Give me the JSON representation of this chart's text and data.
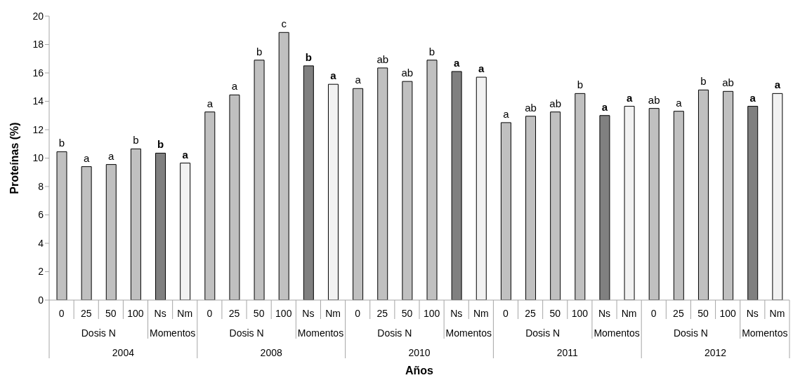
{
  "chart_data": {
    "type": "bar",
    "xlabel": "Años",
    "ylabel": "Proteínas (%)",
    "categories": [
      "0",
      "25",
      "50",
      "100",
      "Ns",
      "Nm",
      "0",
      "25",
      "50",
      "100",
      "Ns",
      "Nm",
      "0",
      "25",
      "50",
      "100",
      "Ns",
      "Nm",
      "0",
      "25",
      "50",
      "100",
      "Ns",
      "Nm",
      "0",
      "25",
      "50",
      "100",
      "Ns",
      "Nm"
    ],
    "values": [
      10.45,
      9.4,
      9.55,
      10.65,
      10.35,
      9.65,
      13.25,
      14.45,
      16.9,
      18.85,
      16.5,
      15.2,
      14.9,
      16.35,
      15.4,
      16.9,
      16.1,
      15.7,
      12.5,
      12.95,
      13.25,
      14.55,
      13.0,
      13.65,
      13.5,
      13.3,
      14.8,
      14.7,
      13.65,
      14.55
    ],
    "colors": [
      "#c0c0c0",
      "#c0c0c0",
      "#c0c0c0",
      "#c0c0c0",
      "#808080",
      "#f2f2f2",
      "#c0c0c0",
      "#c0c0c0",
      "#c0c0c0",
      "#c0c0c0",
      "#808080",
      "#f2f2f2",
      "#c0c0c0",
      "#c0c0c0",
      "#c0c0c0",
      "#c0c0c0",
      "#808080",
      "#f2f2f2",
      "#c0c0c0",
      "#c0c0c0",
      "#c0c0c0",
      "#c0c0c0",
      "#808080",
      "#f2f2f2",
      "#c0c0c0",
      "#c0c0c0",
      "#c0c0c0",
      "#c0c0c0",
      "#808080",
      "#f2f2f2"
    ],
    "value_labels": [
      "b",
      "a",
      "a",
      "b",
      "b",
      "a",
      "a",
      "a",
      "b",
      "c",
      "b",
      "a",
      "a",
      "ab",
      "ab",
      "b",
      "a",
      "a",
      "a",
      "ab",
      "ab",
      "b",
      "a",
      "a",
      "ab",
      "a",
      "b",
      "ab",
      "a",
      "a"
    ],
    "annotations": [
      "Dosis N",
      "Momentos",
      "Dosis N",
      "Momentos",
      "Dosis N",
      "Momentos",
      "Dosis N",
      "Momentos",
      "Dosis N",
      "Momentos",
      "2004",
      "2008",
      "2010",
      "2011",
      "2012"
    ],
    "ylim": [
      0,
      20
    ],
    "yticks": [
      0,
      2,
      4,
      6,
      8,
      10,
      12,
      14,
      16,
      18,
      20
    ]
  }
}
